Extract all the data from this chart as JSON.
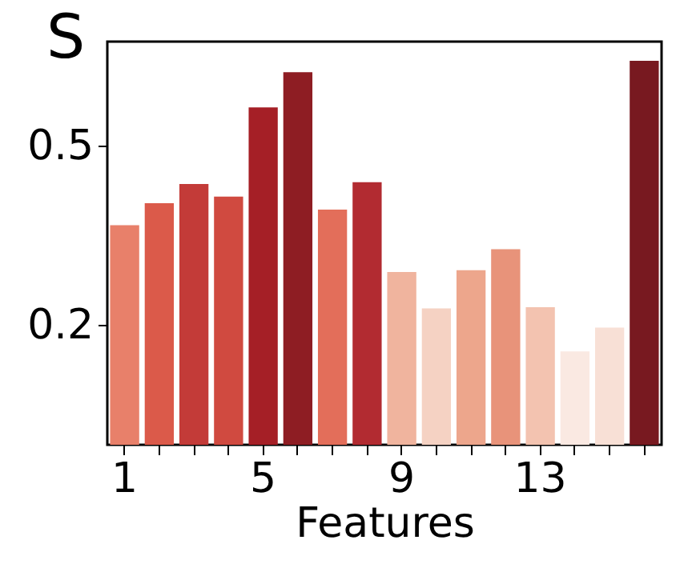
{
  "chart_data": {
    "type": "bar",
    "title": "S",
    "xlabel": "Features",
    "categories": [
      "1",
      null,
      null,
      null,
      "5",
      null,
      null,
      null,
      "9",
      null,
      null,
      null,
      "13",
      null,
      null,
      null
    ],
    "values": [
      0.367,
      0.404,
      0.436,
      0.415,
      0.564,
      0.623,
      0.393,
      0.439,
      0.289,
      0.228,
      0.292,
      0.327,
      0.23,
      0.156,
      0.196,
      0.642
    ],
    "colors": [
      "#e8806a",
      "#db5a4a",
      "#c33b38",
      "#d04a40",
      "#a51f26",
      "#8e1d23",
      "#e36e5a",
      "#b22b31",
      "#f0b49e",
      "#f5d2c3",
      "#eda68c",
      "#e8937a",
      "#f3c3b0",
      "#fae9e2",
      "#f8e0d6",
      "#781920"
    ],
    "ylim": [
      0,
      0.674
    ],
    "yticks": [
      0.2,
      0.5
    ],
    "grid": false
  }
}
